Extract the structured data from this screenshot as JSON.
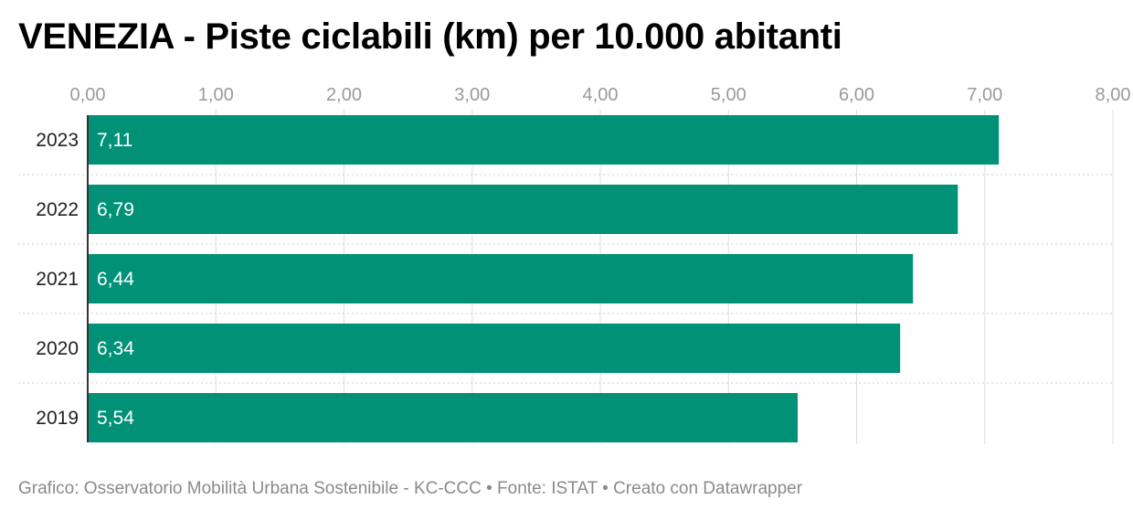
{
  "chart_data": {
    "type": "bar",
    "orientation": "horizontal",
    "title": "VENEZIA - Piste ciclabili (km) per 10.000 abitanti",
    "categories": [
      "2023",
      "2022",
      "2021",
      "2020",
      "2019"
    ],
    "values": [
      7.11,
      6.79,
      6.44,
      6.34,
      5.54
    ],
    "value_labels": [
      "7,11",
      "6,79",
      "6,44",
      "6,34",
      "5,54"
    ],
    "x_ticks": [
      0,
      1,
      2,
      3,
      4,
      5,
      6,
      7,
      8
    ],
    "x_tick_labels": [
      "0,00",
      "1,00",
      "2,00",
      "3,00",
      "4,00",
      "5,00",
      "6,00",
      "7,00",
      "8,00"
    ],
    "xlim": [
      0,
      8
    ],
    "xlabel": "",
    "ylabel": "",
    "grid": true,
    "bar_color": "#009177"
  },
  "footer": "Grafico: Osservatorio Mobilità Urbana Sostenibile - KC-CCC • Fonte: ISTAT • Creato con Datawrapper"
}
